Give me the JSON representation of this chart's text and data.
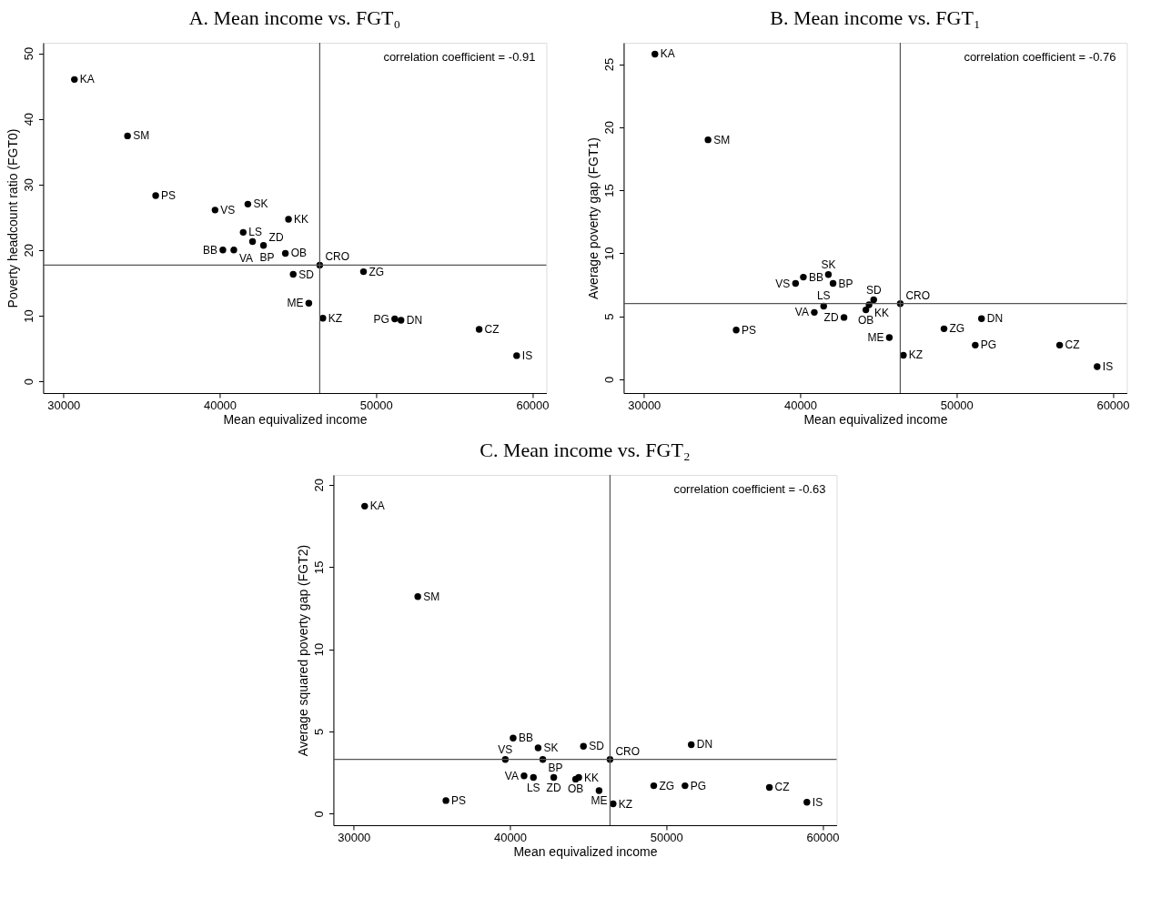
{
  "chart_data": [
    {
      "type": "scatter",
      "title": "A. Mean income vs. FGT₀",
      "xlabel": "Mean equivalized income",
      "ylabel": "Poverty headcount ratio (FGT0)",
      "marker": "circle",
      "grid": false,
      "series": [
        {
          "color": "#000000",
          "x": [
            30700,
            34100,
            35900,
            39700,
            40200,
            40900,
            41500,
            41800,
            42100,
            42800,
            44200,
            44400,
            44700,
            45700,
            46400,
            46600,
            49200,
            51200,
            51600,
            56600,
            59000
          ],
          "values": [
            46.0,
            37.4,
            28.3,
            26.1,
            20.0,
            20.0,
            22.7,
            27.0,
            21.3,
            20.7,
            19.5,
            24.7,
            16.3,
            11.9,
            17.7,
            9.6,
            16.7,
            9.5,
            9.3,
            7.9,
            3.9
          ]
        }
      ],
      "xlim": [
        28700,
        60900
      ],
      "xticks": [
        30000,
        40000,
        50000,
        60000
      ],
      "ylim": [
        -1.8,
        51.6
      ],
      "yticks": [
        0,
        10,
        20,
        30,
        40,
        50
      ],
      "ref_lines": [
        {
          "axis": "x",
          "value": 46400,
          "color": "#555555"
        },
        {
          "axis": "y",
          "value": 17.7,
          "color": "#555555"
        }
      ],
      "annotations": [
        "correlation coefficient = -0.91",
        {
          "text": "KA",
          "x": 30700,
          "y": 46.0
        },
        {
          "text": "SM",
          "x": 34100,
          "y": 37.4
        },
        {
          "text": "PS",
          "x": 35900,
          "y": 28.3
        },
        {
          "text": "VS",
          "x": 39700,
          "y": 26.1
        },
        {
          "text": "BB",
          "x": 40200,
          "y": 20.0
        },
        {
          "text": "VA",
          "x": 40900,
          "y": 20.0
        },
        {
          "text": "LS",
          "x": 41500,
          "y": 22.7
        },
        {
          "text": "SK",
          "x": 41800,
          "y": 27.0
        },
        {
          "text": "BP",
          "x": 42100,
          "y": 21.3
        },
        {
          "text": "ZD",
          "x": 42800,
          "y": 20.7
        },
        {
          "text": "OB",
          "x": 44200,
          "y": 19.5
        },
        {
          "text": "KK",
          "x": 44400,
          "y": 24.7
        },
        {
          "text": "SD",
          "x": 44700,
          "y": 16.3
        },
        {
          "text": "ME",
          "x": 45700,
          "y": 11.9
        },
        {
          "text": "CRO",
          "x": 46400,
          "y": 17.7
        },
        {
          "text": "KZ",
          "x": 46600,
          "y": 9.6
        },
        {
          "text": "ZG",
          "x": 49200,
          "y": 16.7
        },
        {
          "text": "PG",
          "x": 51200,
          "y": 9.5
        },
        {
          "text": "DN",
          "x": 51600,
          "y": 9.3
        },
        {
          "text": "CZ",
          "x": 56600,
          "y": 7.9
        },
        {
          "text": "IS",
          "x": 59000,
          "y": 3.9
        }
      ]
    },
    {
      "type": "scatter",
      "title": "B. Mean income vs. FGT₁",
      "xlabel": "Mean equivalized income",
      "ylabel": "Average poverty gap (FGT1)",
      "marker": "circle",
      "grid": false,
      "series": [
        {
          "color": "#000000",
          "x": [
            30700,
            34100,
            35900,
            39700,
            40200,
            40900,
            41500,
            41800,
            42100,
            42800,
            44200,
            44400,
            44700,
            45700,
            46400,
            46600,
            49200,
            51200,
            51600,
            56600,
            59000
          ],
          "values": [
            25.8,
            19.0,
            3.9,
            7.6,
            8.1,
            5.3,
            5.8,
            8.3,
            7.6,
            4.9,
            5.5,
            5.9,
            6.3,
            3.3,
            6.0,
            1.9,
            4.0,
            2.7,
            4.8,
            2.7,
            1.0
          ]
        }
      ],
      "xlim": [
        28700,
        60900
      ],
      "xticks": [
        30000,
        40000,
        50000,
        60000
      ],
      "ylim": [
        -1.1,
        26.7
      ],
      "yticks": [
        0,
        5,
        10,
        15,
        20,
        25
      ],
      "ref_lines": [
        {
          "axis": "x",
          "value": 46400,
          "color": "#555555"
        },
        {
          "axis": "y",
          "value": 6.0,
          "color": "#555555"
        }
      ],
      "annotations": [
        "correlation coefficient = -0.76",
        {
          "text": "KA",
          "x": 30700,
          "y": 25.8
        },
        {
          "text": "SM",
          "x": 34100,
          "y": 19.0
        },
        {
          "text": "PS",
          "x": 35900,
          "y": 3.9
        },
        {
          "text": "VS",
          "x": 39700,
          "y": 7.6
        },
        {
          "text": "BB",
          "x": 40200,
          "y": 8.1
        },
        {
          "text": "VA",
          "x": 40900,
          "y": 5.3
        },
        {
          "text": "LS",
          "x": 41500,
          "y": 5.8
        },
        {
          "text": "SK",
          "x": 41800,
          "y": 8.3
        },
        {
          "text": "BP",
          "x": 42100,
          "y": 7.6
        },
        {
          "text": "ZD",
          "x": 42800,
          "y": 4.9
        },
        {
          "text": "OB",
          "x": 44200,
          "y": 5.5
        },
        {
          "text": "KK",
          "x": 44400,
          "y": 5.9
        },
        {
          "text": "SD",
          "x": 44700,
          "y": 6.3
        },
        {
          "text": "ME",
          "x": 45700,
          "y": 3.3
        },
        {
          "text": "CRO",
          "x": 46400,
          "y": 6.0
        },
        {
          "text": "KZ",
          "x": 46600,
          "y": 1.9
        },
        {
          "text": "ZG",
          "x": 49200,
          "y": 4.0
        },
        {
          "text": "PG",
          "x": 51200,
          "y": 2.7
        },
        {
          "text": "DN",
          "x": 51600,
          "y": 4.8
        },
        {
          "text": "CZ",
          "x": 56600,
          "y": 2.7
        },
        {
          "text": "IS",
          "x": 59000,
          "y": 1.0
        }
      ]
    },
    {
      "type": "scatter",
      "title": "C. Mean income vs. FGT₂",
      "xlabel": "Mean equivalized income",
      "ylabel": "Average squared poverty gap (FGT2)",
      "marker": "circle",
      "grid": false,
      "series": [
        {
          "color": "#000000",
          "x": [
            30700,
            34100,
            35900,
            39700,
            40200,
            40900,
            41500,
            41800,
            42100,
            42800,
            44200,
            44400,
            44700,
            45700,
            46400,
            46600,
            49200,
            51200,
            51600,
            56600,
            59000
          ],
          "values": [
            18.7,
            13.2,
            0.8,
            3.3,
            4.6,
            2.3,
            2.2,
            4.0,
            3.3,
            2.2,
            2.1,
            2.2,
            4.1,
            1.4,
            3.3,
            0.6,
            1.7,
            1.7,
            4.2,
            1.6,
            0.7
          ]
        }
      ],
      "xlim": [
        28700,
        60900
      ],
      "xticks": [
        30000,
        40000,
        50000,
        60000
      ],
      "ylim": [
        -0.7,
        20.6
      ],
      "yticks": [
        0,
        5,
        10,
        15,
        20
      ],
      "ref_lines": [
        {
          "axis": "x",
          "value": 46400,
          "color": "#555555"
        },
        {
          "axis": "y",
          "value": 3.3,
          "color": "#555555"
        }
      ],
      "annotations": [
        "correlation coefficient = -0.63",
        {
          "text": "KA",
          "x": 30700,
          "y": 18.7
        },
        {
          "text": "SM",
          "x": 34100,
          "y": 13.2
        },
        {
          "text": "PS",
          "x": 35900,
          "y": 0.8
        },
        {
          "text": "VS",
          "x": 39700,
          "y": 3.3
        },
        {
          "text": "BB",
          "x": 40200,
          "y": 4.6
        },
        {
          "text": "VA",
          "x": 40900,
          "y": 2.3
        },
        {
          "text": "LS",
          "x": 41500,
          "y": 2.2
        },
        {
          "text": "SK",
          "x": 41800,
          "y": 4.0
        },
        {
          "text": "BP",
          "x": 42100,
          "y": 3.3
        },
        {
          "text": "ZD",
          "x": 42800,
          "y": 2.2
        },
        {
          "text": "OB",
          "x": 44200,
          "y": 2.1
        },
        {
          "text": "KK",
          "x": 44400,
          "y": 2.2
        },
        {
          "text": "SD",
          "x": 44700,
          "y": 4.1
        },
        {
          "text": "ME",
          "x": 45700,
          "y": 1.4
        },
        {
          "text": "CRO",
          "x": 46400,
          "y": 3.3
        },
        {
          "text": "KZ",
          "x": 46600,
          "y": 0.6
        },
        {
          "text": "ZG",
          "x": 49200,
          "y": 1.7
        },
        {
          "text": "PG",
          "x": 51200,
          "y": 1.7
        },
        {
          "text": "DN",
          "x": 51600,
          "y": 4.2
        },
        {
          "text": "CZ",
          "x": 56600,
          "y": 1.6
        },
        {
          "text": "IS",
          "x": 59000,
          "y": 0.7
        }
      ]
    }
  ]
}
